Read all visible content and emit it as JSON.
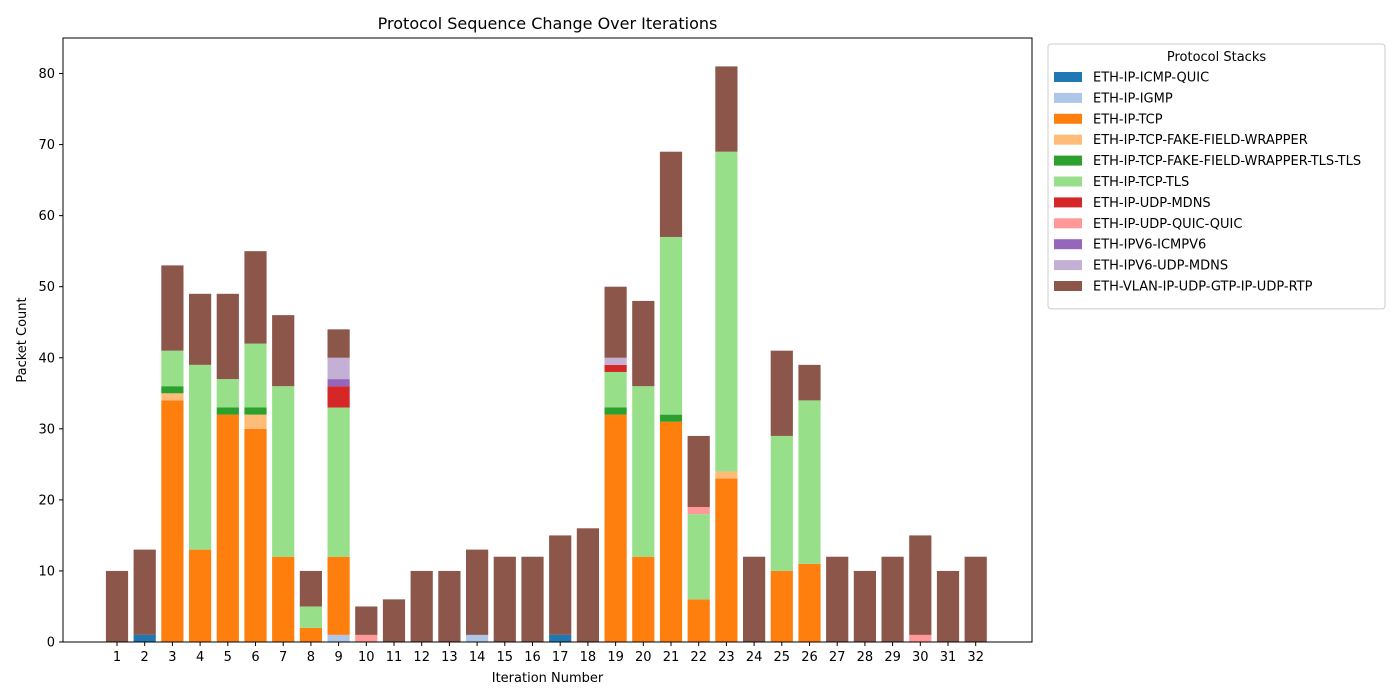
{
  "chart_data": {
    "type": "bar",
    "stacked": true,
    "title": "Protocol Sequence Change Over Iterations",
    "xlabel": "Iteration Number",
    "ylabel": "Packet Count",
    "ylim": [
      0,
      85
    ],
    "yticks": [
      0,
      10,
      20,
      30,
      40,
      50,
      60,
      70,
      80
    ],
    "grid": false,
    "legend_title": "Protocol Stacks",
    "legend_position": "outside-right",
    "categories": [
      "1",
      "2",
      "3",
      "4",
      "5",
      "6",
      "7",
      "8",
      "9",
      "10",
      "11",
      "12",
      "13",
      "14",
      "15",
      "16",
      "17",
      "18",
      "19",
      "20",
      "21",
      "22",
      "23",
      "24",
      "25",
      "26",
      "27",
      "28",
      "29",
      "30",
      "31",
      "32"
    ],
    "series": [
      {
        "name": "ETH-IP-ICMP-QUIC",
        "color": "#1f77b4",
        "values": [
          0,
          1,
          0,
          0,
          0,
          0,
          0,
          0,
          0,
          0,
          0,
          0,
          0,
          0,
          0,
          0,
          1,
          0,
          0,
          0,
          0,
          0,
          0,
          0,
          0,
          0,
          0,
          0,
          0,
          0,
          0,
          0
        ]
      },
      {
        "name": "ETH-IP-IGMP",
        "color": "#aec7e8",
        "values": [
          0,
          0,
          0,
          0,
          0,
          0,
          0,
          0,
          1,
          0,
          0,
          0,
          0,
          1,
          0,
          0,
          0,
          0,
          0,
          0,
          0,
          0,
          0,
          0,
          0,
          0,
          0,
          0,
          0,
          0,
          0,
          0
        ]
      },
      {
        "name": "ETH-IP-TCP",
        "color": "#ff7f0e",
        "values": [
          0,
          0,
          34,
          13,
          32,
          30,
          12,
          2,
          11,
          0,
          0,
          0,
          0,
          0,
          0,
          0,
          0,
          0,
          32,
          12,
          31,
          6,
          23,
          0,
          10,
          11,
          0,
          0,
          0,
          0,
          0,
          0
        ]
      },
      {
        "name": "ETH-IP-TCP-FAKE-FIELD-WRAPPER",
        "color": "#ffbb78",
        "values": [
          0,
          0,
          1,
          0,
          0,
          2,
          0,
          0,
          0,
          0,
          0,
          0,
          0,
          0,
          0,
          0,
          0,
          0,
          0,
          0,
          0,
          0,
          1,
          0,
          0,
          0,
          0,
          0,
          0,
          0,
          0,
          0
        ]
      },
      {
        "name": "ETH-IP-TCP-FAKE-FIELD-WRAPPER-TLS-TLS",
        "color": "#2ca02c",
        "values": [
          0,
          0,
          1,
          0,
          1,
          1,
          0,
          0,
          0,
          0,
          0,
          0,
          0,
          0,
          0,
          0,
          0,
          0,
          1,
          0,
          1,
          0,
          0,
          0,
          0,
          0,
          0,
          0,
          0,
          0,
          0,
          0
        ]
      },
      {
        "name": "ETH-IP-TCP-TLS",
        "color": "#98df8a",
        "values": [
          0,
          0,
          5,
          26,
          4,
          9,
          24,
          3,
          21,
          0,
          0,
          0,
          0,
          0,
          0,
          0,
          0,
          0,
          5,
          24,
          25,
          12,
          45,
          0,
          19,
          23,
          0,
          0,
          0,
          0,
          0,
          0
        ]
      },
      {
        "name": "ETH-IP-UDP-MDNS",
        "color": "#d62728",
        "values": [
          0,
          0,
          0,
          0,
          0,
          0,
          0,
          0,
          3,
          0,
          0,
          0,
          0,
          0,
          0,
          0,
          0,
          0,
          1,
          0,
          0,
          0,
          0,
          0,
          0,
          0,
          0,
          0,
          0,
          0,
          0,
          0
        ]
      },
      {
        "name": "ETH-IP-UDP-QUIC-QUIC",
        "color": "#ff9896",
        "values": [
          0,
          0,
          0,
          0,
          0,
          0,
          0,
          0,
          0,
          1,
          0,
          0,
          0,
          0,
          0,
          0,
          0,
          0,
          0,
          0,
          0,
          1,
          0,
          0,
          0,
          0,
          0,
          0,
          0,
          1,
          0,
          0
        ]
      },
      {
        "name": "ETH-IPV6-ICMPV6",
        "color": "#9467bd",
        "values": [
          0,
          0,
          0,
          0,
          0,
          0,
          0,
          0,
          1,
          0,
          0,
          0,
          0,
          0,
          0,
          0,
          0,
          0,
          0,
          0,
          0,
          0,
          0,
          0,
          0,
          0,
          0,
          0,
          0,
          0,
          0,
          0
        ]
      },
      {
        "name": "ETH-IPV6-UDP-MDNS",
        "color": "#c5b0d5",
        "values": [
          0,
          0,
          0,
          0,
          0,
          0,
          0,
          0,
          3,
          0,
          0,
          0,
          0,
          0,
          0,
          0,
          0,
          0,
          1,
          0,
          0,
          0,
          0,
          0,
          0,
          0,
          0,
          0,
          0,
          0,
          0,
          0
        ]
      },
      {
        "name": "ETH-VLAN-IP-UDP-GTP-IP-UDP-RTP",
        "color": "#8c564b",
        "values": [
          10,
          12,
          12,
          10,
          12,
          13,
          10,
          5,
          4,
          4,
          6,
          10,
          10,
          12,
          12,
          12,
          14,
          16,
          10,
          12,
          12,
          10,
          12,
          12,
          12,
          5,
          12,
          10,
          12,
          14,
          10,
          12
        ]
      }
    ]
  }
}
